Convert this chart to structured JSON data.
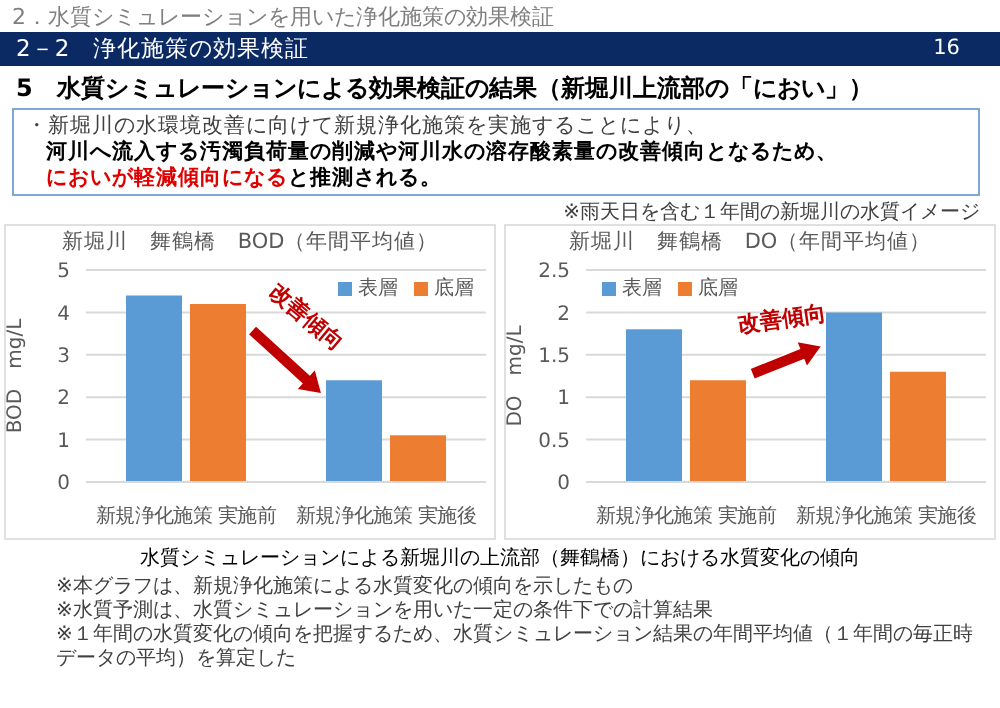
{
  "chart_data": [
    {
      "type": "bar",
      "title": "新堀川　舞鶴橋　BOD（年間平均値）",
      "ylabel": "BOD　mg/L",
      "categories": [
        "新規浄化施策 実施前",
        "新規浄化施策 実施後"
      ],
      "series": [
        {
          "name": "表層",
          "color": "#5b9bd5",
          "values": [
            4.4,
            2.4
          ]
        },
        {
          "name": "底層",
          "color": "#ed7d31",
          "values": [
            4.2,
            1.1
          ]
        }
      ],
      "ylim": [
        0,
        5
      ],
      "yticks": [
        0,
        1,
        2,
        3,
        4,
        5
      ],
      "grid": "y",
      "legend": "top right",
      "annotations": [
        "改善傾向",
        "2．水質シミュレーションを用いた浄化施策の効果検証",
        "2－2　浄化施策の効果検証",
        "16",
        "5　水質シミュレーションによる効果検証の結果（新堀川上流部の「におい」）",
        "・新堀川の水環境改善に向けて新規浄化施策を実施することにより、",
        "河川へ流入する汚濁負荷量の削減や河川水の溶存酸素量の改善傾向となるため、",
        "においが軽減傾向になる",
        "と推測される。",
        "※雨天日を含む１年間の新堀川の水質イメージ",
        "水質シミュレーションによる新堀川の上流部（舞鶴橋）における水質変化の傾向",
        "※本グラフは、新規浄化施策による水質変化の傾向を示したもの",
        "※水質予測は、水質シミュレーションを用いた一定の条件下での計算結果",
        "※１年間の水質変化の傾向を把握するため、水質シミュレーション結果の年間平均値（１年間の毎正時データの平均）を算定した"
      ]
    },
    {
      "type": "bar",
      "title": "新堀川　舞鶴橋　DO（年間平均値）",
      "ylabel": "DO　mg/L",
      "categories": [
        "新規浄化施策 実施前",
        "新規浄化施策 実施後"
      ],
      "series": [
        {
          "name": "表層",
          "color": "#5b9bd5",
          "values": [
            1.8,
            2.0
          ]
        },
        {
          "name": "底層",
          "color": "#ed7d31",
          "values": [
            1.2,
            1.3
          ]
        }
      ],
      "ylim": [
        0,
        2.5
      ],
      "yticks": [
        0,
        0.5,
        1,
        1.5,
        2,
        2.5
      ],
      "grid": "y",
      "legend": "top left",
      "annotations": [
        "改善傾向"
      ]
    }
  ]
}
